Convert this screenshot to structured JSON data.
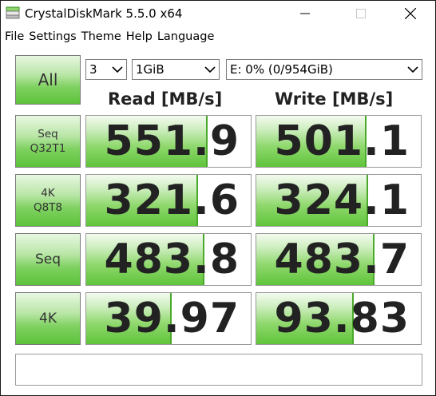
{
  "window": {
    "title": "CrystalDiskMark 5.5.0 x64",
    "icon": "crystaldiskmark-icon"
  },
  "menu": {
    "items": [
      "File",
      "Settings",
      "Theme",
      "Help",
      "Language"
    ]
  },
  "controls": {
    "all_label": "All",
    "test_count": "3",
    "test_size": "1GiB",
    "drive": "E: 0% (0/954GiB)"
  },
  "headers": {
    "read": "Read [MB/s]",
    "write": "Write [MB/s]"
  },
  "tests": [
    {
      "label_line1": "Seq",
      "label_line2": "Q32T1",
      "read": "551.9",
      "write": "501.1",
      "read_fill": 0.74,
      "write_fill": 0.67
    },
    {
      "label_line1": "4K",
      "label_line2": "Q8T8",
      "read": "321.6",
      "write": "324.1",
      "read_fill": 0.68,
      "write_fill": 0.68
    },
    {
      "label_line1": "Seq",
      "label_line2": "",
      "read": "483.8",
      "write": "483.7",
      "read_fill": 0.72,
      "write_fill": 0.72
    },
    {
      "label_line1": "4K",
      "label_line2": "",
      "read": "39.97",
      "write": "93.83",
      "read_fill": 0.52,
      "write_fill": 0.59
    }
  ],
  "comment": "",
  "colors": {
    "accent_green": "#5cc23a",
    "border": "#9a9a9a"
  }
}
